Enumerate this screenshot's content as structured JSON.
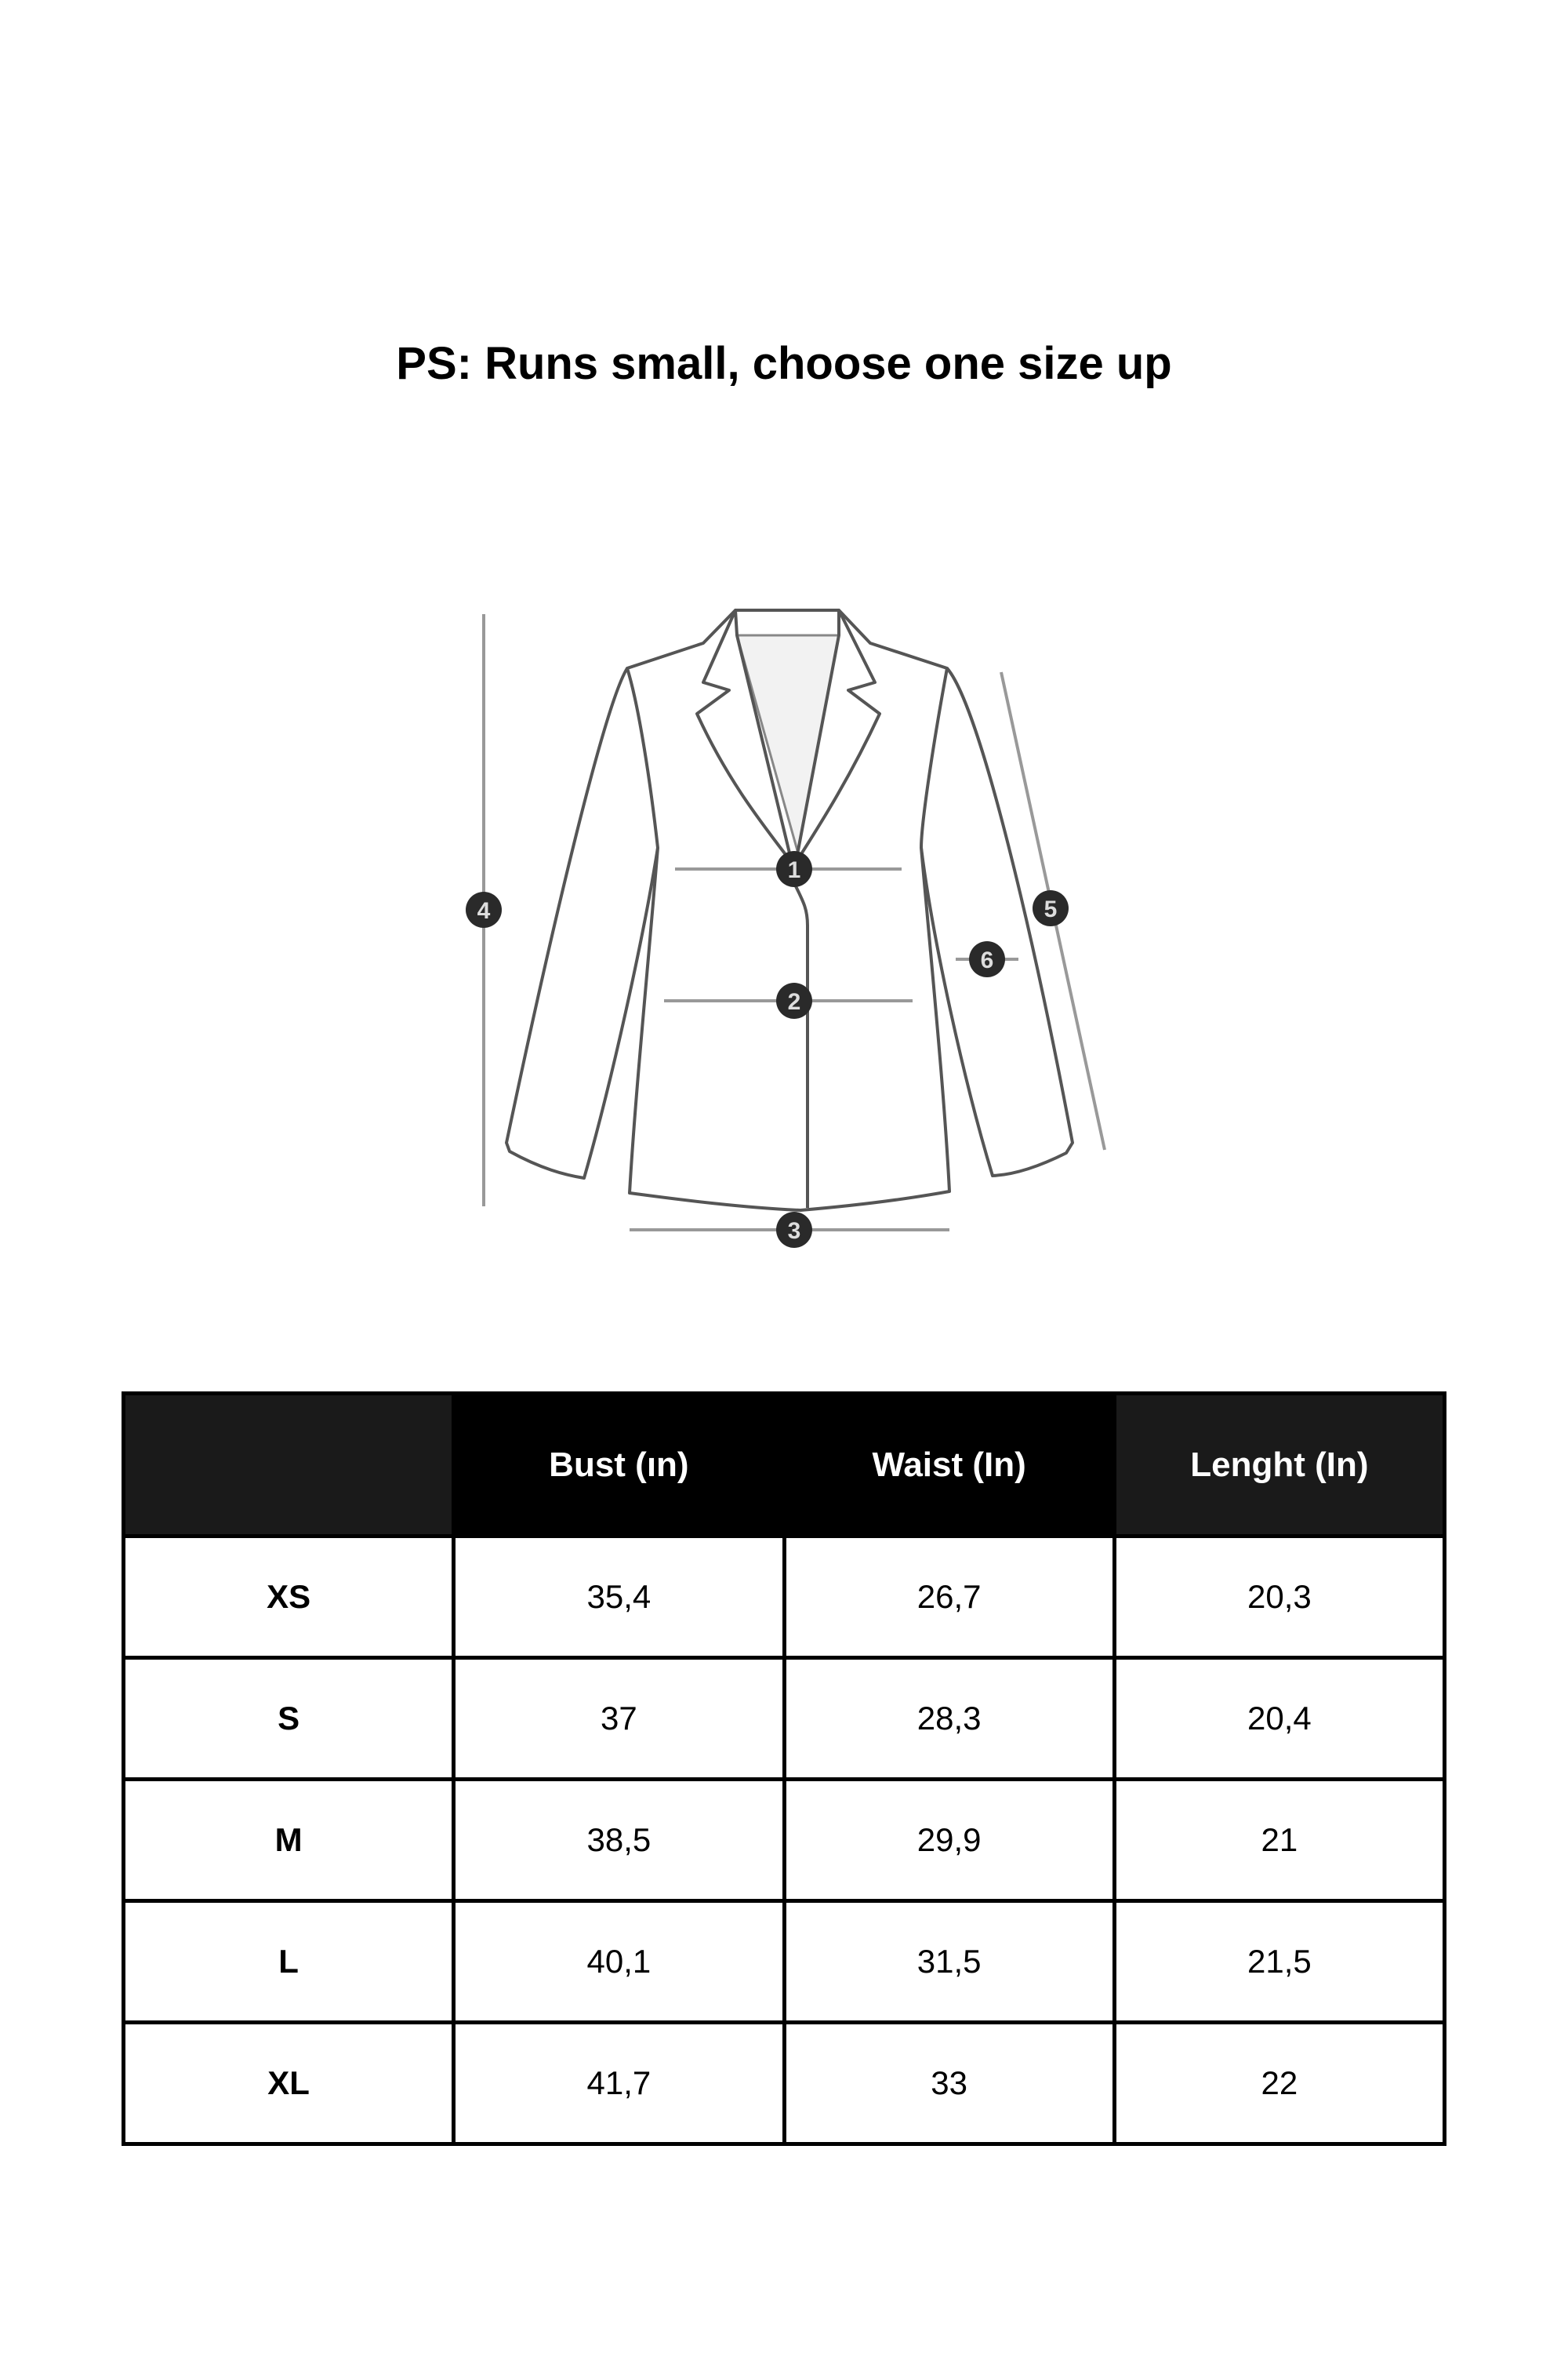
{
  "title": "PS: Runs small, choose one size up",
  "diagram": {
    "markers": [
      "1",
      "2",
      "3",
      "4",
      "5",
      "6"
    ]
  },
  "table": {
    "headers": [
      "",
      "Bust (ın)",
      "Waist (In)",
      "Lenght (In)"
    ],
    "rows": [
      {
        "size": "XS",
        "bust": "35,4",
        "waist": "26,7",
        "length": "20,3"
      },
      {
        "size": "S",
        "bust": "37",
        "waist": "28,3",
        "length": "20,4"
      },
      {
        "size": "M",
        "bust": "38,5",
        "waist": "29,9",
        "length": "21"
      },
      {
        "size": "L",
        "bust": "40,1",
        "waist": "31,5",
        "length": "21,5"
      },
      {
        "size": "XL",
        "bust": "41,7",
        "waist": "33",
        "length": "22"
      }
    ]
  }
}
